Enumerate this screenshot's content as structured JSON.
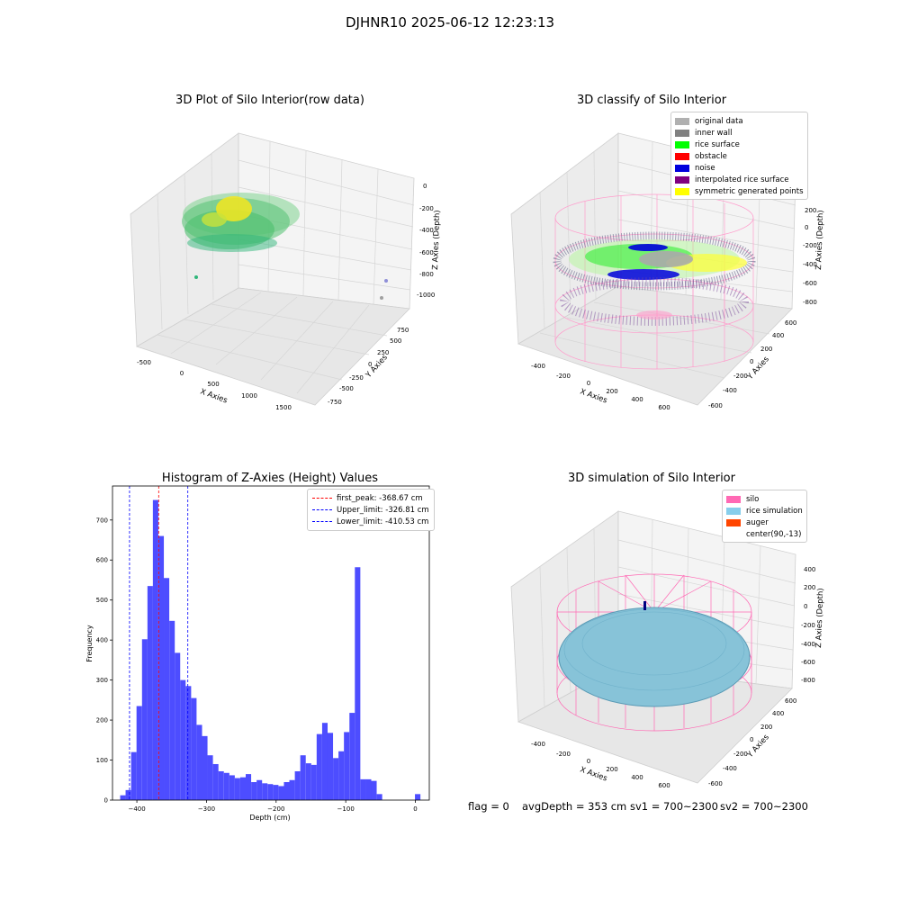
{
  "suptitle": "DJHNR10 2025-06-12 12:23:13",
  "panels": {
    "raw": {
      "title": "3D Plot of Silo Interior(row data)",
      "x_ticks": [
        "-500",
        "0",
        "500",
        "1000",
        "1500"
      ],
      "y_ticks": [
        "750",
        "500",
        "250",
        "0",
        "-250",
        "-500",
        "-750"
      ],
      "z_ticks": [
        "0",
        "-200",
        "-400",
        "-600",
        "-800",
        "-1000"
      ],
      "xlabel": "X Axies",
      "ylabel": "Y Axies",
      "zlabel": "Z Axies (Depth)"
    },
    "classify": {
      "title": "3D classify of Silo Interior",
      "legend": [
        {
          "label": "original data",
          "color": "#b0b0b0"
        },
        {
          "label": "inner wall",
          "color": "#808080"
        },
        {
          "label": "rice surface",
          "color": "#00ff00"
        },
        {
          "label": "obstacle",
          "color": "#ff0000"
        },
        {
          "label": "noise",
          "color": "#0000dd"
        },
        {
          "label": "interpolated rice surface",
          "color": "#800080"
        },
        {
          "label": "symmetric generated points",
          "color": "#ffff00"
        }
      ],
      "x_ticks": [
        "-400",
        "-200",
        "0",
        "200",
        "400",
        "600"
      ],
      "y_ticks": [
        "600",
        "400",
        "200",
        "0",
        "-200",
        "-400",
        "-600"
      ],
      "z_ticks": [
        "200",
        "0",
        "-200",
        "-400",
        "-600",
        "-800"
      ],
      "xlabel": "X Axies",
      "ylabel": "Y Axies",
      "zlabel": "Z Axies (Depth)"
    },
    "simulation": {
      "title": "3D simulation of Silo Interior",
      "legend": [
        {
          "label": "silo",
          "color": "#ff69b4"
        },
        {
          "label": "rice simulation",
          "color": "#87ceeb"
        },
        {
          "label": "auger",
          "color": "#ff4500"
        },
        {
          "label": "center(90,-13)",
          "color": "#ffffff"
        }
      ],
      "x_ticks": [
        "-400",
        "-200",
        "0",
        "200",
        "400",
        "600"
      ],
      "y_ticks": [
        "600",
        "400",
        "200",
        "0",
        "-200",
        "-400",
        "-600"
      ],
      "z_ticks": [
        "400",
        "200",
        "0",
        "-200",
        "-400",
        "-600",
        "-800"
      ],
      "xlabel": "X Axies",
      "ylabel": "Y Axies",
      "zlabel": "Z Axies (Depth)"
    }
  },
  "status": {
    "flag": "flag = 0",
    "avg": "avgDepth = 353 cm",
    "sv1": "sv1 = 700~2300",
    "sv2": "sv2 = 700~2300"
  },
  "chart_data": {
    "type": "bar",
    "title": "Histogram of Z-Axies (Height) Values",
    "xlabel": "Depth (cm)",
    "ylabel": "Frequency",
    "xlim": [
      -435,
      20
    ],
    "ylim": [
      0,
      785
    ],
    "x_ticks": [
      -400,
      -300,
      -200,
      -100,
      0
    ],
    "y_ticks": [
      0,
      100,
      200,
      300,
      400,
      500,
      600,
      700
    ],
    "bin_width": 7.84,
    "bin_starts": [
      -424.0,
      -416.2,
      -408.3,
      -400.5,
      -392.6,
      -384.8,
      -377.0,
      -369.1,
      -361.3,
      -353.4,
      -345.6,
      -337.8,
      -329.9,
      -322.1,
      -314.2,
      -306.4,
      -298.6,
      -290.7,
      -282.9,
      -275.0,
      -267.2,
      -259.4,
      -251.5,
      -243.7,
      -235.8,
      -228.0,
      -220.2,
      -212.3,
      -204.5,
      -196.6,
      -188.8,
      -181.0,
      -173.1,
      -165.3,
      -157.4,
      -149.6,
      -141.8,
      -133.9,
      -126.1,
      -118.2,
      -110.4,
      -102.6,
      -94.7,
      -86.9,
      -79.0,
      -71.2,
      -63.4,
      -55.5,
      -47.7,
      -39.8,
      -32.0,
      -24.2,
      -16.3,
      -8.5,
      -0.6
    ],
    "values": [
      12,
      25,
      120,
      235,
      402,
      535,
      750,
      660,
      555,
      448,
      368,
      300,
      285,
      255,
      188,
      160,
      112,
      90,
      72,
      68,
      62,
      55,
      57,
      65,
      45,
      50,
      42,
      40,
      38,
      35,
      45,
      50,
      72,
      112,
      92,
      88,
      165,
      193,
      168,
      105,
      122,
      170,
      218,
      582,
      52,
      52,
      48,
      15,
      0,
      0,
      0,
      0,
      0,
      0,
      15
    ],
    "vlines": [
      {
        "name": "first_peak: -368.67 cm",
        "x": -368.67,
        "color": "#ff0000"
      },
      {
        "name": "Upper_limit: -326.81 cm",
        "x": -326.81,
        "color": "#0000ff"
      },
      {
        "name": "Lower_limit: -410.53 cm",
        "x": -410.53,
        "color": "#0000ff"
      }
    ],
    "bar_color": "#4d4dff"
  }
}
